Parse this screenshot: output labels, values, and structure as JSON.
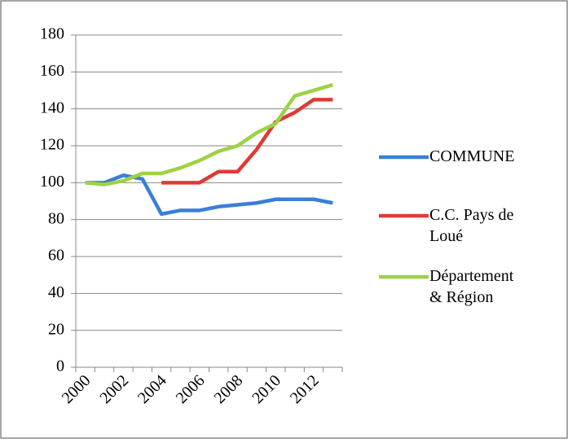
{
  "chart_data": {
    "type": "line",
    "categories": [
      "2000",
      null,
      "2002",
      null,
      "2004",
      null,
      "2006",
      null,
      "2008",
      null,
      "2010",
      null,
      "2012",
      null
    ],
    "series": [
      {
        "name": "COMMUNE",
        "color": "#3a7fd5",
        "values": [
          100,
          100,
          104,
          102,
          83,
          85,
          85,
          87,
          88,
          89,
          91,
          91,
          91,
          89
        ]
      },
      {
        "name": "C.C. Pays de Loué",
        "color": "#e03a35",
        "values": [
          null,
          null,
          null,
          null,
          100,
          100,
          100,
          106,
          106,
          118,
          133,
          138,
          145,
          145
        ]
      },
      {
        "name": "Département & Région",
        "color": "#9dd245",
        "values": [
          100,
          99,
          101,
          105,
          105,
          108,
          112,
          117,
          120,
          127,
          132,
          147,
          150,
          153
        ]
      }
    ],
    "ylim": [
      0,
      180
    ],
    "yticks": [
      0,
      20,
      40,
      60,
      80,
      100,
      120,
      140,
      160,
      180
    ],
    "grid": true,
    "legend": "right"
  }
}
